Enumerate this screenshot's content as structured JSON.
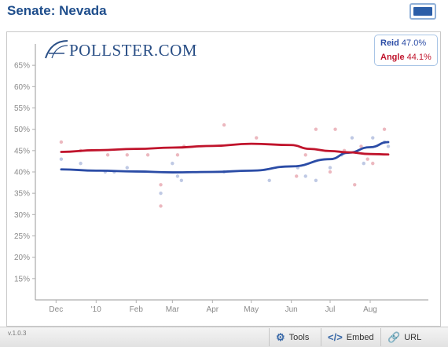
{
  "header": {
    "title": "Senate: Nevada"
  },
  "logo": {
    "text": "POLLSTER.COM"
  },
  "legend": [
    {
      "name": "Reid",
      "value": "47.0%",
      "color": "#2b4ca6"
    },
    {
      "name": "Angle",
      "value": "44.1%",
      "color": "#c0142c"
    }
  ],
  "footer": {
    "version": "v.1.0.3",
    "tools_label": "Tools",
    "embed_label": "Embed",
    "url_label": "URL",
    "tools_icon": "gear-icon",
    "embed_icon": "code-icon",
    "url_icon": "link-icon"
  },
  "chart_data": {
    "type": "line",
    "y_ticks": [
      "15%",
      "20%",
      "25%",
      "30%",
      "35%",
      "40%",
      "45%",
      "50%",
      "55%",
      "60%",
      "65%"
    ],
    "y_tick_values": [
      15,
      20,
      25,
      30,
      35,
      40,
      45,
      50,
      55,
      60,
      65
    ],
    "ylim": [
      10,
      70
    ],
    "x_ticks": [
      "Dec",
      "'10",
      "Feb",
      "Mar",
      "Apr",
      "May",
      "Jun",
      "Jul",
      "Aug"
    ],
    "x_tick_values": [
      "2009-12-01",
      "2010-01-01",
      "2010-02-01",
      "2010-03-01",
      "2010-04-01",
      "2010-05-01",
      "2010-06-01",
      "2010-07-01",
      "2010-08-01"
    ],
    "xlim": [
      "2009-11-15",
      "2010-09-15"
    ],
    "grid": false,
    "legend_position": "top-right",
    "series": [
      {
        "name": "Reid",
        "color": "#2b4ca6",
        "trend": [
          [
            "2009-12-05",
            40.6
          ],
          [
            "2010-01-01",
            40.3
          ],
          [
            "2010-02-01",
            40.1
          ],
          [
            "2010-03-01",
            39.9
          ],
          [
            "2010-04-01",
            40.0
          ],
          [
            "2010-05-01",
            40.3
          ],
          [
            "2010-06-01",
            41.3
          ],
          [
            "2010-07-01",
            43.0
          ],
          [
            "2010-07-15",
            44.5
          ],
          [
            "2010-08-01",
            45.8
          ],
          [
            "2010-08-15",
            47.0
          ]
        ],
        "polls": [
          [
            "2009-12-05",
            43
          ],
          [
            "2009-12-20",
            42
          ],
          [
            "2010-01-08",
            40
          ],
          [
            "2010-01-15",
            40
          ],
          [
            "2010-01-25",
            41
          ],
          [
            "2010-02-20",
            35
          ],
          [
            "2010-03-01",
            42
          ],
          [
            "2010-03-05",
            39
          ],
          [
            "2010-03-08",
            38
          ],
          [
            "2010-04-10",
            40
          ],
          [
            "2010-05-15",
            38
          ],
          [
            "2010-06-06",
            41
          ],
          [
            "2010-06-12",
            39
          ],
          [
            "2010-06-20",
            38
          ],
          [
            "2010-07-01",
            41
          ],
          [
            "2010-07-10",
            44
          ],
          [
            "2010-07-18",
            48
          ],
          [
            "2010-07-27",
            42
          ],
          [
            "2010-08-03",
            48
          ],
          [
            "2010-08-12",
            47
          ],
          [
            "2010-08-15",
            46
          ]
        ]
      },
      {
        "name": "Angle",
        "color": "#c0142c",
        "trend": [
          [
            "2009-12-05",
            44.7
          ],
          [
            "2010-01-01",
            45.1
          ],
          [
            "2010-02-01",
            45.4
          ],
          [
            "2010-03-01",
            45.7
          ],
          [
            "2010-04-01",
            46.1
          ],
          [
            "2010-05-01",
            46.6
          ],
          [
            "2010-06-01",
            46.3
          ],
          [
            "2010-06-15",
            45.4
          ],
          [
            "2010-07-01",
            44.9
          ],
          [
            "2010-07-15",
            44.6
          ],
          [
            "2010-08-01",
            44.2
          ],
          [
            "2010-08-15",
            44.1
          ]
        ],
        "polls": [
          [
            "2009-12-05",
            47
          ],
          [
            "2009-12-20",
            45
          ],
          [
            "2010-01-10",
            44
          ],
          [
            "2010-01-25",
            44
          ],
          [
            "2010-02-10",
            44
          ],
          [
            "2010-02-20",
            37
          ],
          [
            "2010-02-20",
            32
          ],
          [
            "2010-03-05",
            44
          ],
          [
            "2010-03-10",
            46
          ],
          [
            "2010-04-10",
            51
          ],
          [
            "2010-05-05",
            48
          ],
          [
            "2010-06-05",
            39
          ],
          [
            "2010-06-12",
            44
          ],
          [
            "2010-06-20",
            50
          ],
          [
            "2010-07-01",
            40
          ],
          [
            "2010-07-05",
            50
          ],
          [
            "2010-07-12",
            45
          ],
          [
            "2010-07-20",
            37
          ],
          [
            "2010-07-25",
            46
          ],
          [
            "2010-07-30",
            43
          ],
          [
            "2010-08-03",
            42
          ],
          [
            "2010-08-12",
            50
          ]
        ]
      }
    ]
  }
}
